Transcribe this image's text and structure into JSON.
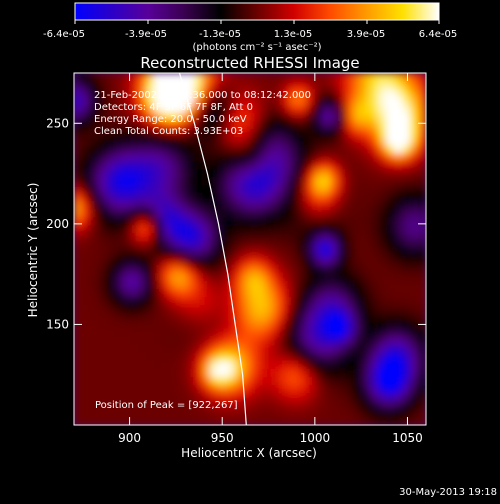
{
  "colorbar": {
    "tick_labels": [
      "-6.4e-05",
      "-3.9e-05",
      "-1.3e-05",
      "1.3e-05",
      "3.9e-05",
      "6.4e-05"
    ],
    "unit_label": "(photons cm⁻² s⁻¹ asec⁻²)",
    "range": [
      -6.4e-05,
      6.4e-05
    ],
    "gradient_colors": [
      "#0000ff",
      "#2b00c8",
      "#58009a",
      "#3a0050",
      "#000000",
      "#6a0000",
      "#d00000",
      "#ff4a00",
      "#ff9a00",
      "#ffe000",
      "#ffffff"
    ]
  },
  "chart_data": {
    "type": "heatmap",
    "title": "Reconstructed RHESSI Image",
    "xlabel": "Heliocentric X (arcsec)",
    "ylabel": "Heliocentric Y (arcsec)",
    "xlim": [
      870,
      1060
    ],
    "ylim": [
      100,
      275
    ],
    "x_ticks": [
      900,
      950,
      1000,
      1050
    ],
    "y_ticks": [
      150,
      200,
      250
    ],
    "x_tick_labels": [
      "900",
      "950",
      "1000",
      "1050"
    ],
    "y_tick_labels": [
      "150",
      "200",
      "250"
    ],
    "info_lines": [
      "21-Feb-2002 08:07:36.000 to 08:12:42.000",
      "Detectors: 4F 5F 6F 7F 8F, Att 0",
      "Energy Range: 20.0 - 50.0 keV",
      "Clean    Total Counts: 3.93E+03"
    ],
    "peak_label": "Position of Peak = [922,267]",
    "peak_position": [
      922,
      267
    ],
    "limb_curve": [
      [
        926,
        278
      ],
      [
        935,
        250
      ],
      [
        942,
        225
      ],
      [
        948,
        200
      ],
      [
        953,
        175
      ],
      [
        957,
        150
      ],
      [
        961,
        125
      ],
      [
        963,
        100
      ]
    ]
  },
  "footer": {
    "timestamp": "30-May-2013 19:18"
  }
}
